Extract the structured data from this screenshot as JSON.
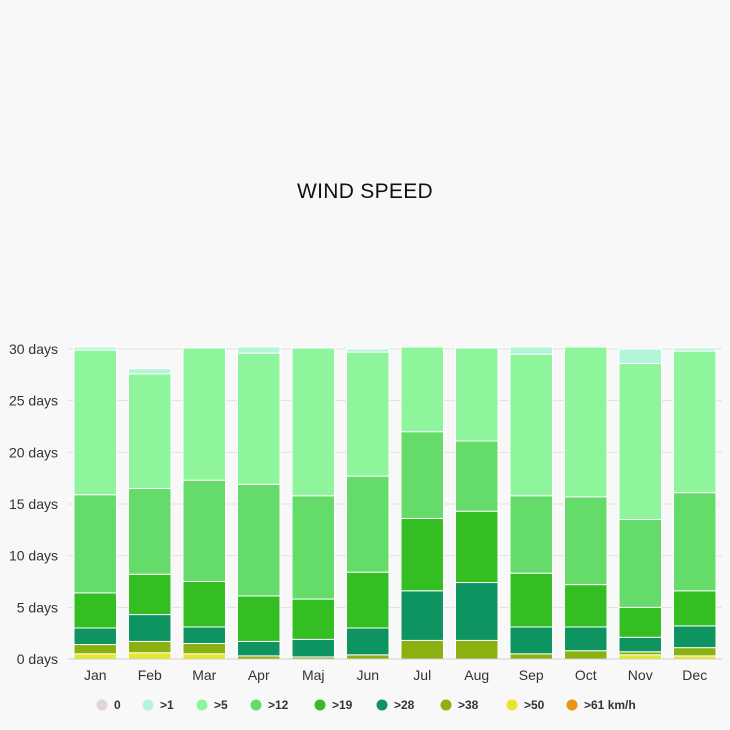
{
  "chart_data": {
    "type": "bar",
    "stacked": true,
    "title": "WIND SPEED",
    "xlabel": "",
    "ylabel": "",
    "ylim": [
      0,
      30
    ],
    "y_ticks": [
      "0 days",
      "5 days",
      "10 days",
      "15 days",
      "20 days",
      "25 days",
      "30 days"
    ],
    "grid": true,
    "legend_position": "bottom",
    "categories": [
      "Jan",
      "Feb",
      "Mar",
      "Apr",
      "Maj",
      "Jun",
      "Jul",
      "Aug",
      "Sep",
      "Oct",
      "Nov",
      "Dec"
    ],
    "series": [
      {
        "name": "0",
        "color": "#e0d6da",
        "values": [
          0,
          0,
          0,
          0,
          0,
          0,
          0,
          0,
          0,
          0,
          0,
          0
        ]
      },
      {
        "name": ">1",
        "color": "#b4f5d8",
        "values": [
          0.3,
          0.5,
          0,
          0.6,
          0,
          0.3,
          0,
          0,
          0.7,
          0,
          1.4,
          0.3
        ]
      },
      {
        "name": ">5",
        "color": "#8ff59c",
        "values": [
          14,
          11.1,
          12.8,
          12.7,
          14.3,
          12,
          8.2,
          9,
          13.7,
          14.5,
          15.1,
          13.7
        ]
      },
      {
        "name": ">12",
        "color": "#65dc69",
        "values": [
          9.5,
          8.3,
          9.8,
          10.8,
          10,
          9.3,
          8.4,
          6.8,
          7.5,
          8.5,
          8.5,
          9.5
        ]
      },
      {
        "name": ">19",
        "color": "#33bf22",
        "values": [
          3.4,
          3.9,
          4.4,
          4.4,
          3.9,
          5.4,
          7,
          6.9,
          5.2,
          4.1,
          2.9,
          3.4
        ]
      },
      {
        "name": ">28",
        "color": "#0e9461",
        "values": [
          1.6,
          2.6,
          1.6,
          1.4,
          1.7,
          2.6,
          4.8,
          5.6,
          2.6,
          2.3,
          1.4,
          2.1
        ]
      },
      {
        "name": ">38",
        "color": "#8ab10f",
        "values": [
          0.9,
          1.1,
          1,
          0.3,
          0.2,
          0.4,
          1.8,
          1.8,
          0.5,
          0.8,
          0.3,
          0.8
        ]
      },
      {
        "name": ">50",
        "color": "#e6e62a",
        "values": [
          0.5,
          0.6,
          0.5,
          0,
          0,
          0,
          0,
          0,
          0,
          0,
          0.4,
          0.3
        ]
      },
      {
        "name": ">61 km/h",
        "color": "#ea9515",
        "values": [
          0,
          0,
          0,
          0,
          0,
          0,
          0,
          0,
          0,
          0,
          0,
          0
        ]
      }
    ]
  }
}
